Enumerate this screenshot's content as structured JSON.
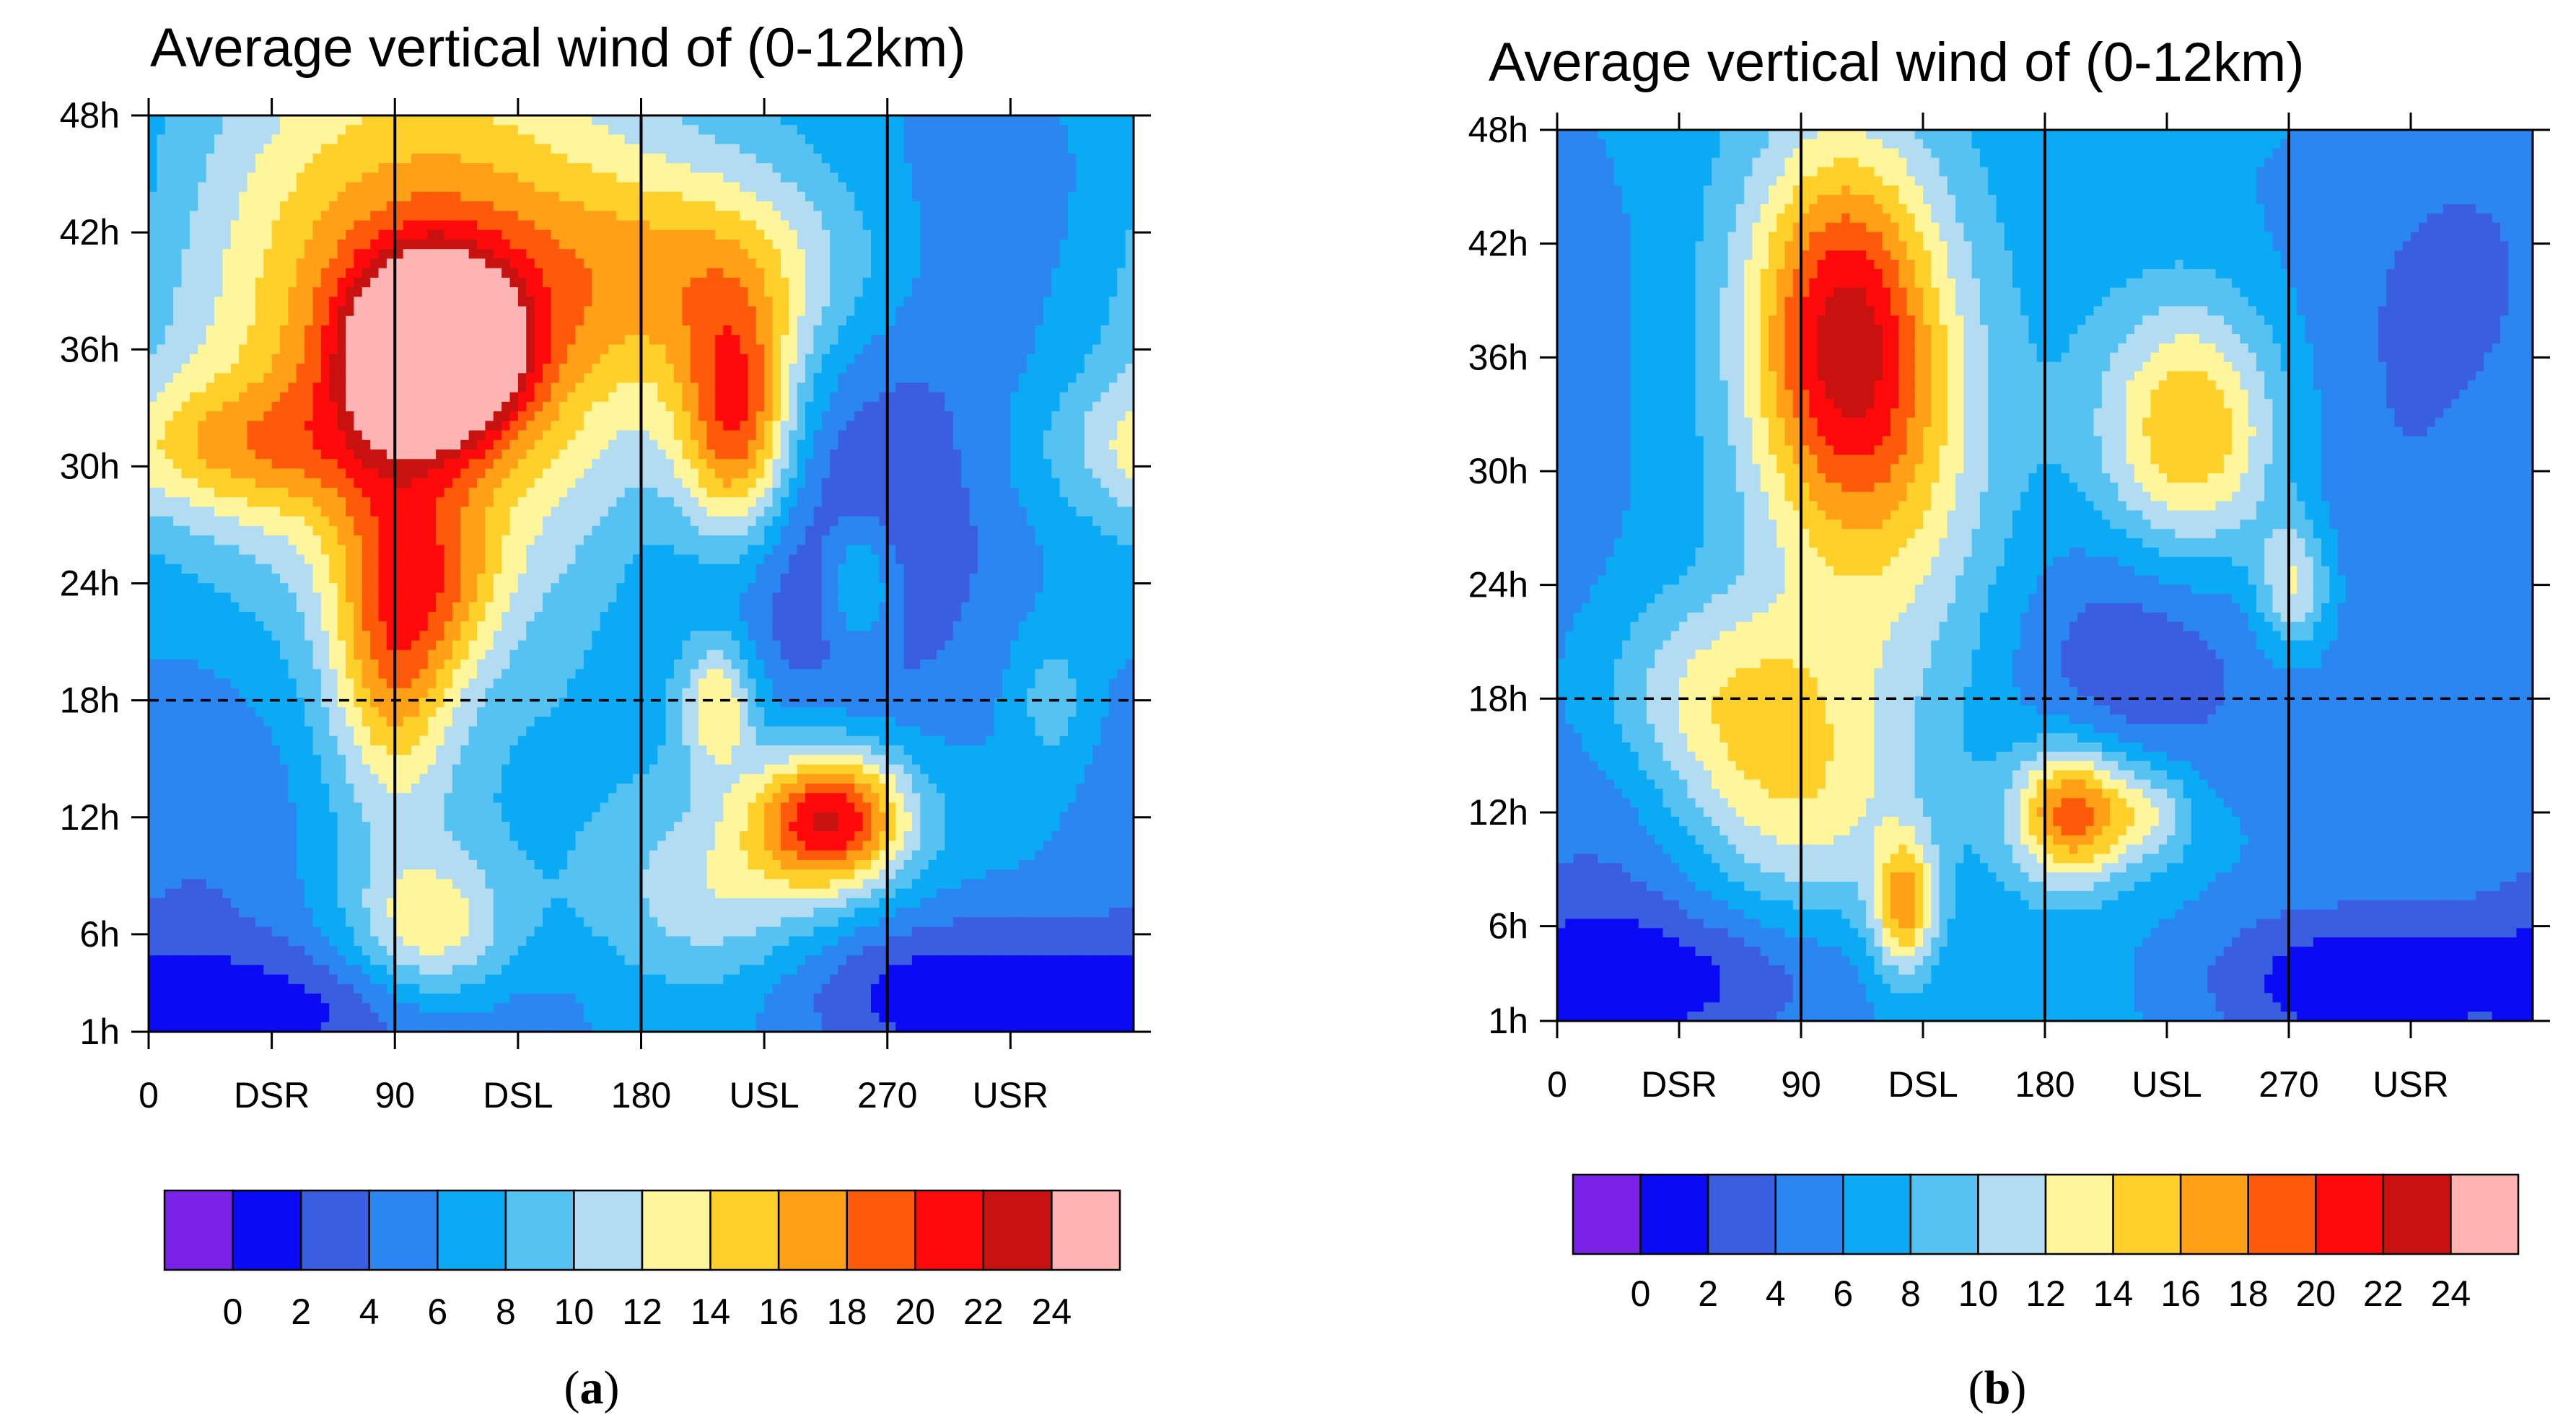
{
  "colors": {
    "levels": [
      "#7b22e8",
      "#0a0af5",
      "#3a5ee0",
      "#2b86f2",
      "#0aaaf5",
      "#56c2f2",
      "#b2dcf2",
      "#fff59a",
      "#ffd02a",
      "#ffa016",
      "#ff5a0a",
      "#ff0a0a",
      "#c8120f",
      "#ffb4b4"
    ],
    "reference_line": "#000000"
  },
  "colorbar": {
    "labels": [
      "0",
      "2",
      "4",
      "6",
      "8",
      "10",
      "12",
      "14",
      "16",
      "18",
      "20",
      "22",
      "24"
    ]
  },
  "chart_data": [
    {
      "type": "heatmap",
      "panel_label": "a",
      "title": "Average vertical wind of (0-12km)",
      "xlabel": "",
      "ylabel": "",
      "x_ticks": [
        "0",
        "DSR",
        "90",
        "DSL",
        "180",
        "USL",
        "270",
        "USR"
      ],
      "x_tick_values": [
        0,
        45,
        90,
        135,
        180,
        225,
        270,
        315
      ],
      "y_ticks": [
        "1h",
        "6h",
        "12h",
        "18h",
        "24h",
        "30h",
        "36h",
        "42h",
        "48h"
      ],
      "y_tick_values": [
        1,
        6,
        12,
        18,
        24,
        30,
        36,
        42,
        48
      ],
      "xlim": [
        0,
        360
      ],
      "ylim": [
        1,
        48
      ],
      "colorbar_levels": [
        0,
        2,
        4,
        6,
        8,
        10,
        12,
        14,
        16,
        18,
        20,
        22,
        24
      ],
      "reference_lines": {
        "vertical_solid": [
          90,
          180,
          270
        ],
        "horizontal_dashed": [
          18
        ]
      },
      "background_value": 7,
      "features": [
        {
          "x": 105,
          "y": 36,
          "value": 24,
          "sx": 20,
          "sy": 3
        },
        {
          "x": 100,
          "y": 38,
          "value": 12,
          "sx": 60,
          "sy": 10
        },
        {
          "x": 30,
          "y": 31,
          "value": 6,
          "sx": 40,
          "sy": 2.5
        },
        {
          "x": 90,
          "y": 21,
          "value": 10,
          "sx": 16,
          "sy": 6
        },
        {
          "x": 113,
          "y": 24,
          "value": 4,
          "sx": 14,
          "sy": 3
        },
        {
          "x": 103,
          "y": 6,
          "value": 7,
          "sx": 20,
          "sy": 3
        },
        {
          "x": 215,
          "y": 32,
          "value": 13,
          "sx": 15,
          "sy": 4.5
        },
        {
          "x": 210,
          "y": 40,
          "value": 7,
          "sx": 45,
          "sy": 4
        },
        {
          "x": 208,
          "y": 18,
          "value": 8,
          "sx": 10,
          "sy": 2.5
        },
        {
          "x": 250,
          "y": 12,
          "value": 15,
          "sx": 20,
          "sy": 2.5
        },
        {
          "x": 210,
          "y": 8,
          "value": 5,
          "sx": 30,
          "sy": 4
        },
        {
          "x": 260,
          "y": 24,
          "value": 6,
          "sx": 10,
          "sy": 2.5
        },
        {
          "x": 330,
          "y": 18,
          "value": 3,
          "sx": 10,
          "sy": 2.5
        },
        {
          "x": 230,
          "y": 24,
          "value": -3,
          "sx": 40,
          "sy": 5
        },
        {
          "x": 270,
          "y": 30,
          "value": -4,
          "sx": 40,
          "sy": 10
        },
        {
          "x": 60,
          "y": 2,
          "value": -5,
          "sx": 60,
          "sy": 2.5
        },
        {
          "x": 290,
          "y": 3,
          "value": -6,
          "sx": 50,
          "sy": 3
        },
        {
          "x": 20,
          "y": 12,
          "value": -3,
          "sx": 30,
          "sy": 8
        },
        {
          "x": 330,
          "y": 44,
          "value": -2,
          "sx": 40,
          "sy": 6
        }
      ]
    },
    {
      "type": "heatmap",
      "panel_label": "b",
      "title": "Average vertical wind of (0-12km)",
      "xlabel": "",
      "ylabel": "",
      "x_ticks": [
        "0",
        "DSR",
        "90",
        "DSL",
        "180",
        "USL",
        "270",
        "USR"
      ],
      "x_tick_values": [
        0,
        45,
        90,
        135,
        180,
        225,
        270,
        315
      ],
      "y_ticks": [
        "1h",
        "6h",
        "12h",
        "18h",
        "24h",
        "30h",
        "36h",
        "42h",
        "48h"
      ],
      "y_tick_values": [
        1,
        6,
        12,
        18,
        24,
        30,
        36,
        42,
        48
      ],
      "xlim": [
        0,
        360
      ],
      "ylim": [
        1,
        48
      ],
      "colorbar_levels": [
        0,
        2,
        4,
        6,
        8,
        10,
        12,
        14,
        16,
        18,
        20,
        22,
        24
      ],
      "reference_lines": {
        "vertical_solid": [
          90,
          180,
          270
        ],
        "horizontal_dashed": [
          18
        ]
      },
      "background_value": 7,
      "features": [
        {
          "x": 105,
          "y": 38,
          "value": 13,
          "sx": 25,
          "sy": 7
        },
        {
          "x": 120,
          "y": 30,
          "value": 6,
          "sx": 30,
          "sy": 8
        },
        {
          "x": 60,
          "y": 18,
          "value": 7,
          "sx": 35,
          "sy": 4
        },
        {
          "x": 235,
          "y": 32,
          "value": 11,
          "sx": 25,
          "sy": 5
        },
        {
          "x": 190,
          "y": 12,
          "value": 13,
          "sx": 15,
          "sy": 2.5
        },
        {
          "x": 220,
          "y": 12,
          "value": 5,
          "sx": 12,
          "sy": 2
        },
        {
          "x": 128,
          "y": 7,
          "value": 10,
          "sx": 8,
          "sy": 2.5
        },
        {
          "x": 272,
          "y": 24,
          "value": 7,
          "sx": 10,
          "sy": 2.5
        },
        {
          "x": 90,
          "y": 12,
          "value": 5,
          "sx": 30,
          "sy": 4
        },
        {
          "x": 210,
          "y": 20,
          "value": -4,
          "sx": 30,
          "sy": 5
        },
        {
          "x": 290,
          "y": 30,
          "value": -3,
          "sx": 60,
          "sy": 12
        },
        {
          "x": 40,
          "y": 3,
          "value": -5,
          "sx": 50,
          "sy": 3
        },
        {
          "x": 290,
          "y": 3,
          "value": -6,
          "sx": 40,
          "sy": 3
        },
        {
          "x": 20,
          "y": 12,
          "value": -3,
          "sx": 30,
          "sy": 8
        },
        {
          "x": 340,
          "y": 42,
          "value": -2,
          "sx": 30,
          "sy": 6
        }
      ]
    }
  ]
}
